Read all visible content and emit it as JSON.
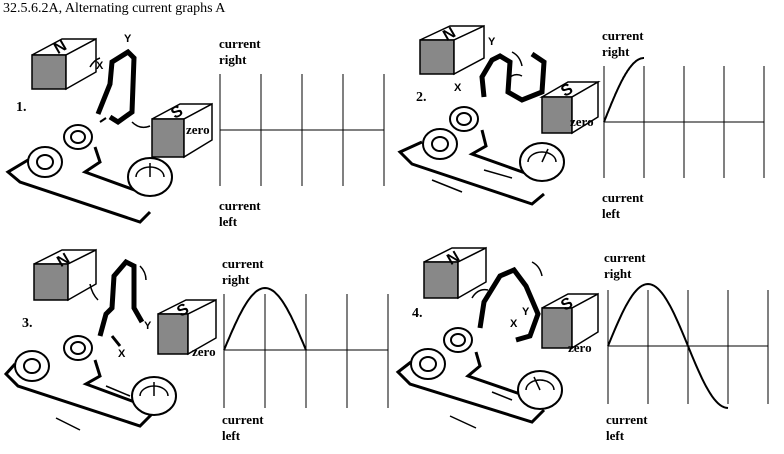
{
  "title": "32.5.6.2A, Alternating current graphs A",
  "labels": {
    "north": "N",
    "south": "S",
    "x": "X",
    "y": "Y"
  },
  "panels": [
    {
      "number": "1.",
      "axis_top": "current right",
      "axis_zero": "zero",
      "axis_bottom": "current left",
      "graph_progress": 0
    },
    {
      "number": "2.",
      "axis_top": "current right",
      "axis_zero": "zero",
      "axis_bottom": "current left",
      "graph_progress": 0.25
    },
    {
      "number": "3.",
      "axis_top": "current right",
      "axis_zero": "zero",
      "axis_bottom": "current left",
      "graph_progress": 0.5
    },
    {
      "number": "4.",
      "axis_top": "current right",
      "axis_zero": "zero",
      "axis_bottom": "current left",
      "graph_progress": 0.75
    }
  ],
  "axis_top_lines": [
    "current",
    "right"
  ],
  "axis_bottom_lines": [
    "current",
    "left"
  ]
}
